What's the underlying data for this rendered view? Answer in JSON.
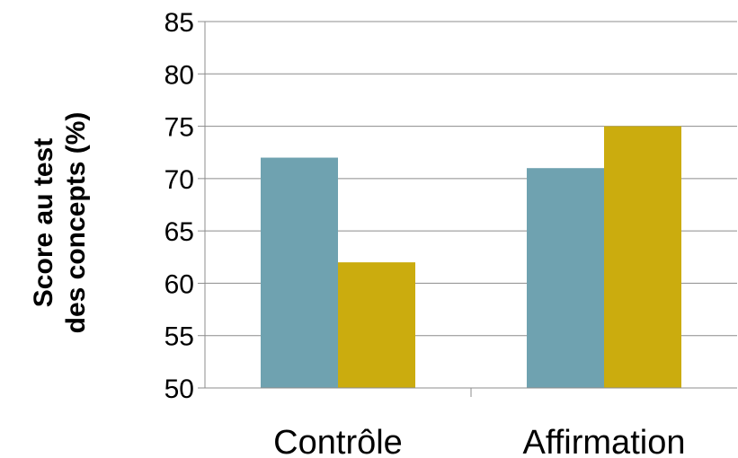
{
  "chart_data": {
    "type": "bar",
    "categories": [
      "Contrôle",
      "Affirmation"
    ],
    "series": [
      {
        "values": [
          72,
          71
        ],
        "color": "#6fa2b0"
      },
      {
        "values": [
          62,
          75
        ],
        "color": "#cbac0e"
      }
    ],
    "title": "",
    "xlabel": "",
    "ylabel_lines": [
      "Score au test",
      "des concepts (%)"
    ],
    "ylim": [
      50,
      85
    ],
    "yticks": [
      50,
      55,
      60,
      65,
      70,
      75,
      80,
      85
    ],
    "grid": true,
    "legend": "none"
  }
}
